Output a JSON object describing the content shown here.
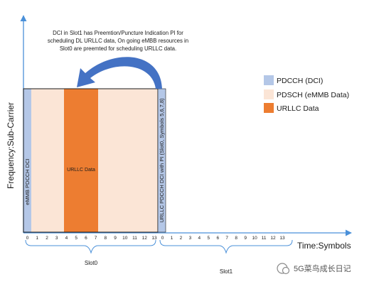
{
  "axes": {
    "y_label": "Frequency:Sub-Carrier",
    "x_label": "Time:Symbols"
  },
  "callout": {
    "lines": [
      "DCI in Slot1 has Preemtion/Puncture Indication PI for",
      "scheduling DL URLLC data, On going eMBB resources in",
      "Slot0 are preemted for scheduling URLLC data."
    ]
  },
  "legend": [
    {
      "label": "PDCCH (DCI)",
      "color": "#b4c7e7"
    },
    {
      "label": "PDSCH (eMMB Data)",
      "color": "#fbe5d6"
    },
    {
      "label": "URLLC Data",
      "color": "#ed7d31"
    }
  ],
  "slot0": {
    "pdcch_label": "eMMB PDCCH DCI",
    "urllc_label": "URLLC Data",
    "name": "Slot0",
    "symbols": [
      "0",
      "1",
      "2",
      "3",
      "4",
      "5",
      "6",
      "7",
      "8",
      "9",
      "10",
      "11",
      "12",
      "13"
    ]
  },
  "slot1": {
    "pdcch_label": "URLLC PDCCH DCI with PI (Slot0, Symbols 5,6,7,8)",
    "name": "Slot1",
    "symbols": [
      "0",
      "1",
      "2",
      "3",
      "4",
      "5",
      "6",
      "7",
      "8",
      "9",
      "10",
      "11",
      "12",
      "13"
    ]
  },
  "watermark": "5G菜鸟成长日记"
}
